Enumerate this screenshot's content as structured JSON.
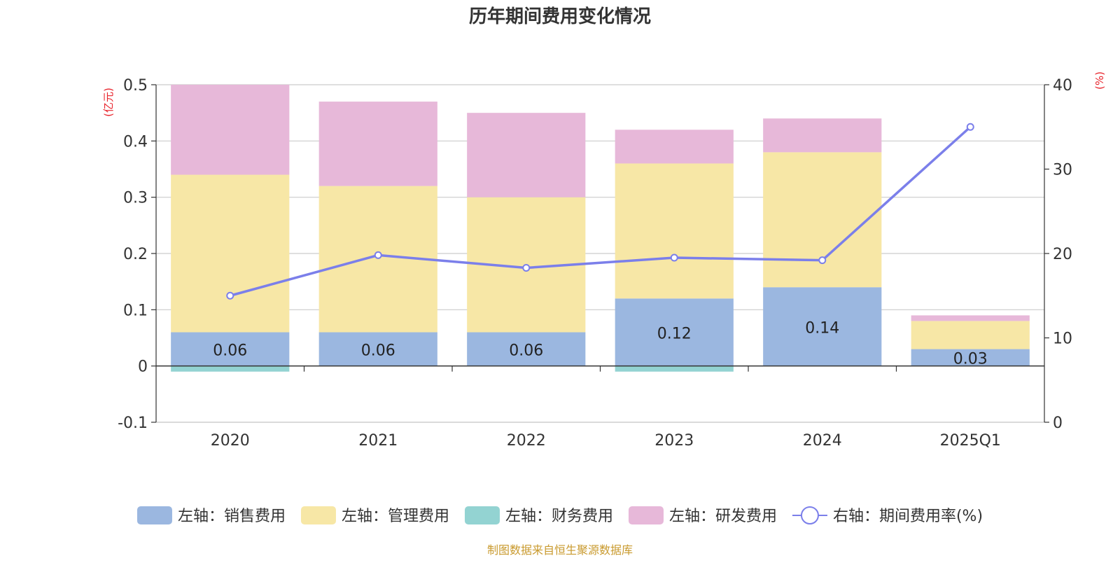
{
  "chart_data": {
    "type": "bar",
    "title": "历年期间费用变化情况",
    "categories": [
      "2020",
      "2021",
      "2022",
      "2023",
      "2024",
      "2025Q1"
    ],
    "stacked": true,
    "left_axis": {
      "unit_label": "(亿元)",
      "ylim": [
        -0.1,
        0.5
      ],
      "ticks": [
        "-0.1",
        "0",
        "0.1",
        "0.2",
        "0.3",
        "0.4",
        "0.5"
      ]
    },
    "right_axis": {
      "unit_label": "(%)",
      "ylim": [
        0,
        40
      ],
      "ticks": [
        "0",
        "10",
        "20",
        "30",
        "40"
      ]
    },
    "series": [
      {
        "name": "左轴：销售费用",
        "type": "bar",
        "axis": "left",
        "color": "#9bb7e0",
        "values": [
          0.06,
          0.06,
          0.06,
          0.12,
          0.14,
          0.03
        ],
        "data_labels": [
          "0.06",
          "0.06",
          "0.06",
          "0.12",
          "0.14",
          "0.03"
        ]
      },
      {
        "name": "左轴：管理费用",
        "type": "bar",
        "axis": "left",
        "color": "#f7e7a6",
        "values": [
          0.28,
          0.26,
          0.24,
          0.24,
          0.24,
          0.05
        ]
      },
      {
        "name": "左轴：财务费用",
        "type": "bar",
        "axis": "left",
        "color": "#93d3d2",
        "values": [
          -0.01,
          0.0,
          0.0,
          -0.01,
          0.0,
          0.0
        ]
      },
      {
        "name": "左轴：研发费用",
        "type": "bar",
        "axis": "left",
        "color": "#e7b8d9",
        "values": [
          0.16,
          0.15,
          0.15,
          0.06,
          0.06,
          0.01
        ]
      },
      {
        "name": "右轴：期间费用率(%)",
        "type": "line",
        "axis": "right",
        "color": "#7b7fea",
        "values": [
          15.0,
          19.8,
          18.3,
          19.5,
          19.2,
          35.0
        ]
      }
    ],
    "grid": true,
    "legend_position": "bottom",
    "source": "制图数据来自恒生聚源数据库"
  }
}
